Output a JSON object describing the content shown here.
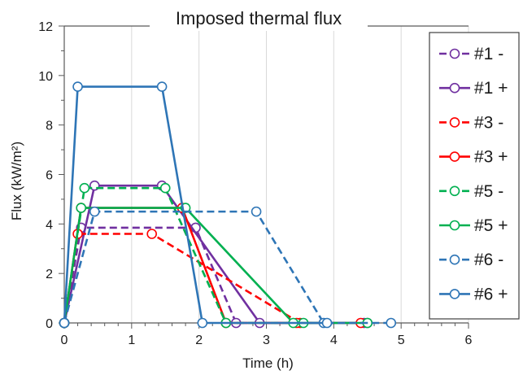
{
  "chart_data": {
    "type": "line",
    "title": "Imposed thermal flux",
    "xlabel": "Time (h)",
    "ylabel": "Flux (kW/m²)",
    "xlim": [
      0,
      6
    ],
    "ylim": [
      0,
      12
    ],
    "xticks": [
      "0",
      "1",
      "2",
      "3",
      "4",
      "5",
      "6"
    ],
    "yticks": [
      "0",
      "2",
      "4",
      "6",
      "8",
      "10",
      "12"
    ],
    "grid": "vertical",
    "legend_position": "right",
    "series": [
      {
        "name": "#1 -",
        "color": "#7030a0",
        "dash": true,
        "points": [
          [
            0,
            0
          ],
          [
            0.25,
            3.85
          ],
          [
            1.95,
            3.85
          ],
          [
            2.55,
            0
          ],
          [
            4.45,
            0
          ]
        ]
      },
      {
        "name": "#1 +",
        "color": "#7030a0",
        "dash": false,
        "points": [
          [
            0,
            0
          ],
          [
            0.45,
            5.55
          ],
          [
            1.45,
            5.55
          ],
          [
            2.9,
            0
          ],
          [
            4.5,
            0
          ]
        ]
      },
      {
        "name": "#3 -",
        "color": "#ff0000",
        "dash": true,
        "points": [
          [
            0,
            0
          ],
          [
            0.2,
            3.6
          ],
          [
            1.3,
            3.6
          ],
          [
            3.5,
            0
          ],
          [
            4.4,
            0
          ]
        ]
      },
      {
        "name": "#3 +",
        "color": "#ff0000",
        "dash": false,
        "points": [
          [
            0,
            0
          ],
          [
            0.25,
            4.65
          ],
          [
            1.75,
            4.65
          ],
          [
            2.4,
            0
          ],
          [
            3.45,
            0
          ]
        ]
      },
      {
        "name": "#5 -",
        "color": "#00b050",
        "dash": true,
        "points": [
          [
            0,
            0
          ],
          [
            0.3,
            5.45
          ],
          [
            1.5,
            5.45
          ],
          [
            2.4,
            0
          ],
          [
            3.55,
            0
          ]
        ]
      },
      {
        "name": "#5 +",
        "color": "#00b050",
        "dash": false,
        "points": [
          [
            0,
            0
          ],
          [
            0.25,
            4.65
          ],
          [
            1.8,
            4.65
          ],
          [
            3.4,
            0
          ],
          [
            4.5,
            0
          ]
        ]
      },
      {
        "name": "#6 -",
        "color": "#2e75b6",
        "dash": true,
        "points": [
          [
            0,
            0
          ],
          [
            0.45,
            4.5
          ],
          [
            2.85,
            4.5
          ],
          [
            3.85,
            0
          ],
          [
            4.85,
            0
          ]
        ]
      },
      {
        "name": "#6 +",
        "color": "#2e75b6",
        "dash": false,
        "points": [
          [
            0,
            0
          ],
          [
            0.2,
            9.55
          ],
          [
            1.45,
            9.55
          ],
          [
            2.05,
            0
          ],
          [
            3.9,
            0
          ]
        ]
      }
    ]
  }
}
